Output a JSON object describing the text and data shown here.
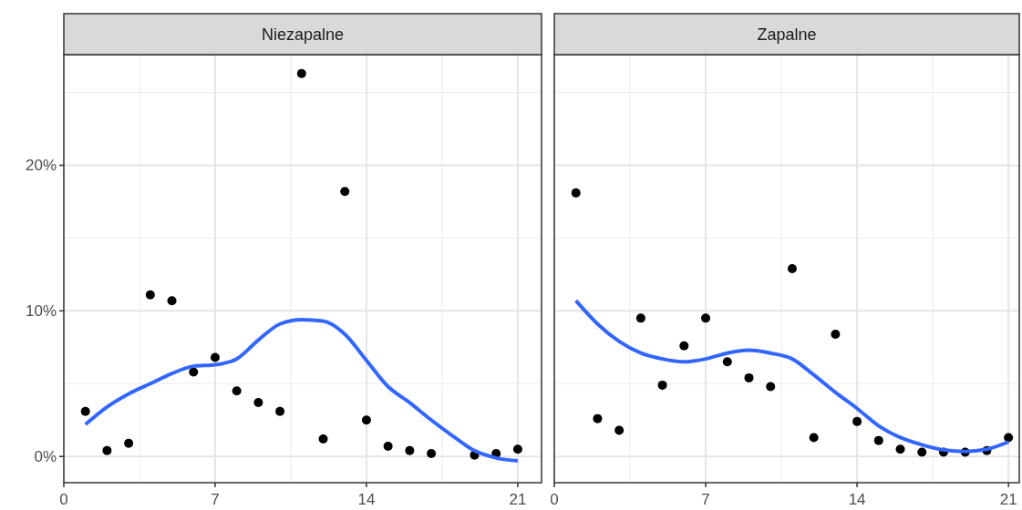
{
  "chart_data": [
    {
      "type": "scatter",
      "title": "Niezapalne",
      "xlim": [
        0,
        22.1
      ],
      "xticks": [
        0,
        7,
        14,
        21
      ],
      "ylim": [
        -1.8,
        27.6
      ],
      "yticks": [
        {
          "value": 0,
          "label": "0%"
        },
        {
          "value": 10,
          "label": "10%"
        },
        {
          "value": 20,
          "label": "20%"
        }
      ],
      "grid": true,
      "x": [
        1,
        2,
        3,
        4,
        5,
        6,
        7,
        8,
        9,
        10,
        11,
        12,
        13,
        14,
        15,
        16,
        17,
        19,
        20,
        21
      ],
      "series": [
        {
          "marker": "circle",
          "color": "#000000",
          "values": [
            3.1,
            0.4,
            0.9,
            11.1,
            10.7,
            5.8,
            6.8,
            4.5,
            3.7,
            3.1,
            26.3,
            1.2,
            18.2,
            2.5,
            0.7,
            0.4,
            0.2,
            0.1,
            0.2,
            0.5
          ]
        },
        {
          "type": "line",
          "color": "#3366ff",
          "x": [
            1,
            2,
            3,
            4,
            5,
            6,
            7,
            8,
            9,
            10,
            11,
            12,
            13,
            14,
            15,
            16,
            17,
            18,
            19,
            20,
            21
          ],
          "values": [
            2.2,
            3.4,
            4.3,
            5.0,
            5.7,
            6.2,
            6.3,
            6.7,
            8.0,
            9.1,
            9.4,
            9.3,
            8.4,
            6.6,
            4.8,
            3.7,
            2.5,
            1.4,
            0.4,
            -0.1,
            -0.3
          ]
        }
      ]
    },
    {
      "type": "scatter",
      "title": "Zapalne",
      "xlim": [
        0,
        21.5
      ],
      "xticks": [
        0,
        7,
        14,
        21
      ],
      "ylim": [
        -1.8,
        27.6
      ],
      "yticks": [
        0,
        10,
        20
      ],
      "tick_labels": "x",
      "grid": true,
      "x": [
        1,
        2,
        3,
        4,
        5,
        6,
        7,
        8,
        9,
        10,
        11,
        12,
        13,
        14,
        15,
        16,
        17,
        18,
        19,
        20,
        21
      ],
      "series": [
        {
          "marker": "circle",
          "color": "#000000",
          "values": [
            18.1,
            2.6,
            1.8,
            9.5,
            4.9,
            7.6,
            9.5,
            6.5,
            5.4,
            4.8,
            12.9,
            1.3,
            8.4,
            2.4,
            1.1,
            0.5,
            0.3,
            0.3,
            0.3,
            0.4,
            1.3
          ]
        },
        {
          "type": "line",
          "color": "#3366ff",
          "values": [
            10.7,
            9.1,
            7.9,
            7.1,
            6.7,
            6.5,
            6.7,
            7.1,
            7.3,
            7.1,
            6.7,
            5.6,
            4.4,
            3.3,
            2.1,
            1.3,
            0.8,
            0.45,
            0.35,
            0.5,
            1.0
          ]
        }
      ]
    }
  ]
}
